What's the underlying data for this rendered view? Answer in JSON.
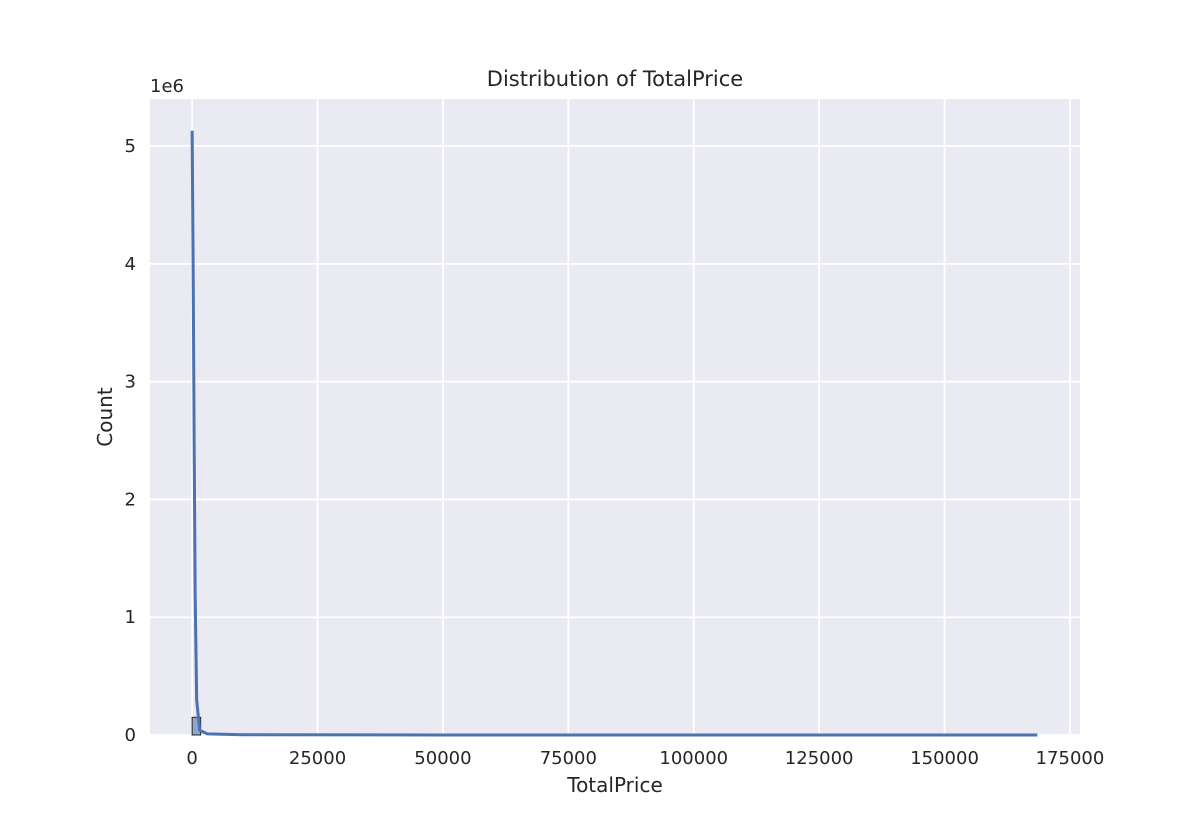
{
  "chart_data": {
    "type": "bar",
    "title": "Distribution of TotalPrice",
    "xlabel": "TotalPrice",
    "ylabel": "Count",
    "y_offset_label": "1e6",
    "y_scale_multiplier": 1000000,
    "xlim": [
      -8400,
      177000
    ],
    "ylim": [
      0,
      5400000
    ],
    "x_ticks": [
      0,
      25000,
      50000,
      75000,
      100000,
      125000,
      150000,
      175000
    ],
    "x_tick_labels": [
      "0",
      "25000",
      "50000",
      "75000",
      "100000",
      "125000",
      "150000",
      "175000"
    ],
    "y_ticks": [
      0,
      1000000,
      2000000,
      3000000,
      4000000,
      5000000
    ],
    "y_tick_labels": [
      "0",
      "1",
      "2",
      "3",
      "4",
      "5"
    ],
    "grid": true,
    "bins": [
      {
        "x0": 0,
        "x1": 1700,
        "count": 150000
      }
    ],
    "kde": {
      "x": [
        0,
        200,
        400,
        600,
        900,
        1500,
        3000,
        10000,
        50000,
        100000,
        168500
      ],
      "y": [
        5130000,
        4000000,
        2500000,
        1200000,
        300000,
        40000,
        10000,
        2000,
        0,
        0,
        0
      ]
    },
    "colors": {
      "background": "#eaeaf2",
      "grid": "#ffffff",
      "bar_fill": "#8fa6cf",
      "bar_edge": "#262626",
      "kde_line": "#4c72b0"
    }
  }
}
